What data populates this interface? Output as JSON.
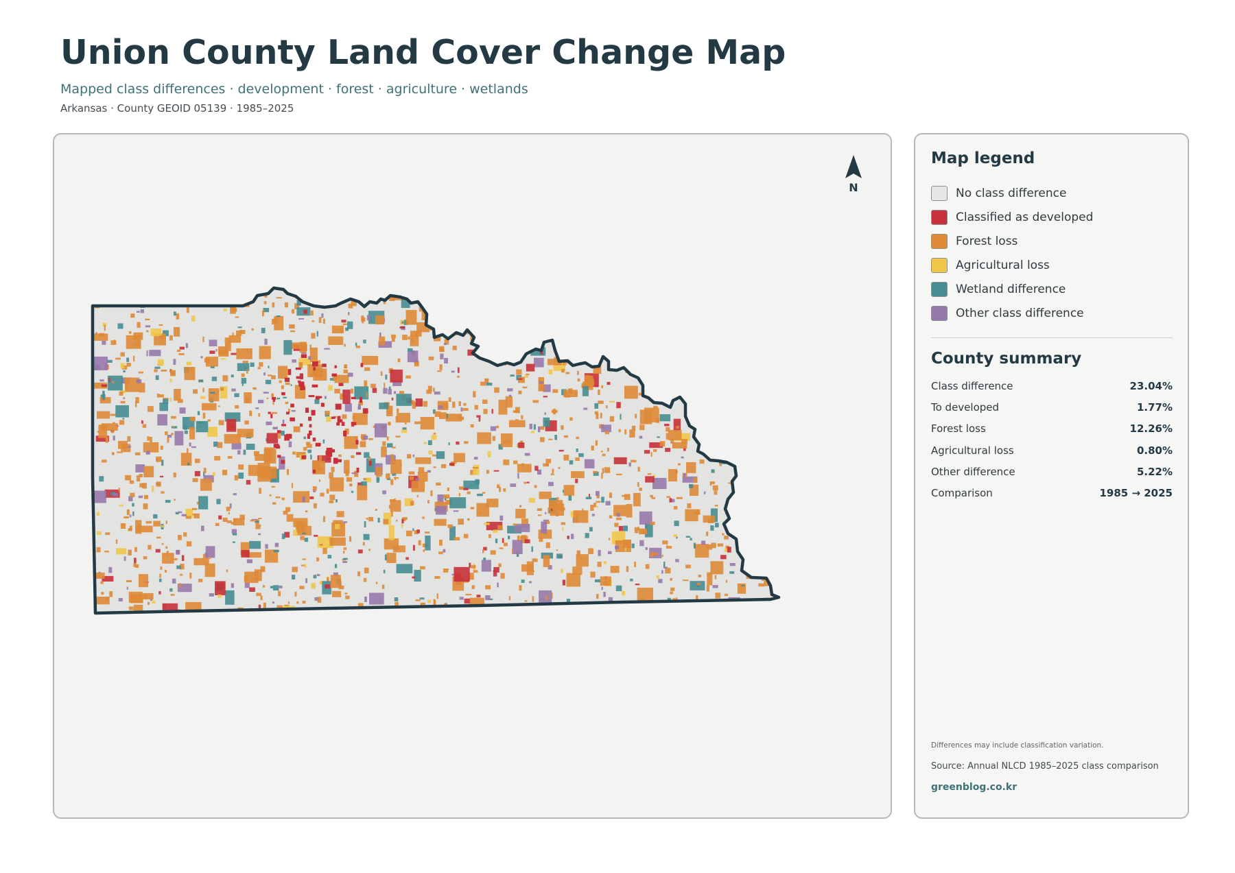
{
  "header": {
    "title": "Union County Land Cover Change Map",
    "subtitle": "Mapped class differences · development · forest · agriculture · wetlands",
    "meta": "Arkansas · County GEOID 05139 · 1985–2025"
  },
  "map": {
    "north_label": "N",
    "icon": "north-arrow-icon",
    "colors": {
      "background": "#e3e4e1",
      "outline": "#233a45",
      "developed": "#c8313a",
      "forest_loss": "#de8a37",
      "agricultural_loss": "#efc54a",
      "wetland": "#468c92",
      "other": "#9778ac"
    }
  },
  "legend": {
    "title": "Map legend",
    "items": [
      {
        "label": "No class difference",
        "color": "#e6e6e4"
      },
      {
        "label": "Classified as developed",
        "color": "#c8313a"
      },
      {
        "label": "Forest loss",
        "color": "#de8a37"
      },
      {
        "label": "Agricultural loss",
        "color": "#efc54a"
      },
      {
        "label": "Wetland difference",
        "color": "#468c92"
      },
      {
        "label": "Other class difference",
        "color": "#9778ac"
      }
    ]
  },
  "summary": {
    "title": "County summary",
    "rows": [
      {
        "label": "Class difference",
        "value": "23.04%"
      },
      {
        "label": "To developed",
        "value": "1.77%"
      },
      {
        "label": "Forest loss",
        "value": "12.26%"
      },
      {
        "label": "Agricultural loss",
        "value": "0.80%"
      },
      {
        "label": "Other difference",
        "value": "5.22%"
      },
      {
        "label": "Comparison",
        "value": "1985 → 2025"
      }
    ]
  },
  "footer": {
    "note": "Differences may include classification variation.",
    "source": "Source: Annual NLCD 1985–2025 class comparison",
    "site": "greenblog.co.kr"
  }
}
